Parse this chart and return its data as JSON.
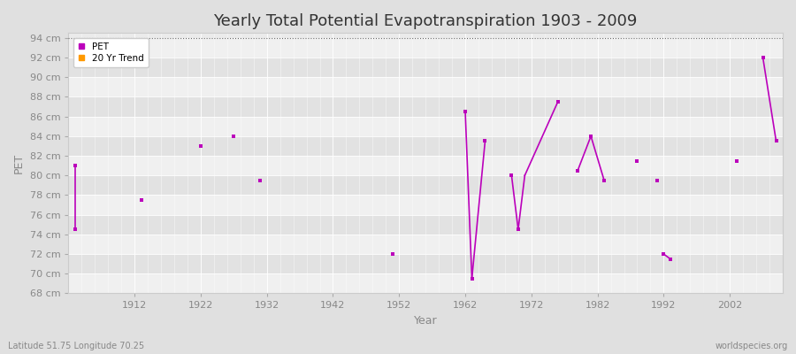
{
  "title": "Yearly Total Potential Evapotranspiration 1903 - 2009",
  "xlabel": "Year",
  "ylabel": "PET",
  "xlim": [
    1902,
    2010
  ],
  "ylim": [
    68,
    94.5
  ],
  "yticks": [
    68,
    70,
    72,
    74,
    76,
    78,
    80,
    82,
    84,
    86,
    88,
    90,
    92,
    94
  ],
  "ytick_labels": [
    "68 cm",
    "70 cm",
    "72 cm",
    "74 cm",
    "76 cm",
    "78 cm",
    "80 cm",
    "82 cm",
    "84 cm",
    "86 cm",
    "88 cm",
    "90 cm",
    "92 cm",
    "94 cm"
  ],
  "xticks": [
    1912,
    1922,
    1932,
    1942,
    1952,
    1962,
    1972,
    1982,
    1992,
    2002
  ],
  "pet_color": "#bb00bb",
  "trend_color": "#ff9900",
  "fig_bg_color": "#e0e0e0",
  "plot_bg_color": "#ebebeb",
  "band_color_light": "#f0f0f0",
  "band_color_dark": "#e2e2e2",
  "grid_color": "#ffffff",
  "title_fontsize": 13,
  "label_fontsize": 9,
  "tick_fontsize": 8,
  "footer_left": "Latitude 51.75 Longitude 70.25",
  "footer_right": "worldspecies.org",
  "pet_points": [
    [
      1903,
      81.0
    ],
    [
      1903,
      74.5
    ],
    [
      1913,
      77.5
    ],
    [
      1922,
      83.0
    ],
    [
      1927,
      84.0
    ],
    [
      1931,
      79.5
    ],
    [
      1951,
      72.0
    ],
    [
      1962,
      86.5
    ],
    [
      1963,
      69.5
    ],
    [
      1965,
      83.5
    ],
    [
      1969,
      80.0
    ],
    [
      1970,
      74.5
    ],
    [
      1976,
      87.5
    ],
    [
      1979,
      80.5
    ],
    [
      1981,
      84.0
    ],
    [
      1983,
      79.5
    ],
    [
      1988,
      81.5
    ],
    [
      1991,
      79.5
    ],
    [
      1992,
      72.0
    ],
    [
      1993,
      71.5
    ],
    [
      2003,
      81.5
    ],
    [
      2007,
      92.0
    ],
    [
      2009,
      83.5
    ]
  ],
  "pet_segments": [
    [
      [
        1903,
        81.0
      ],
      [
        1903,
        74.5
      ]
    ],
    [
      [
        1962,
        86.5
      ],
      [
        1963,
        69.5
      ]
    ],
    [
      [
        1963,
        69.5
      ],
      [
        1965,
        83.5
      ]
    ],
    [
      [
        1969,
        80.0
      ],
      [
        1970,
        74.5
      ]
    ],
    [
      [
        1970,
        74.5
      ],
      [
        1971,
        80.0
      ]
    ],
    [
      [
        1971,
        80.0
      ],
      [
        1976,
        87.5
      ]
    ],
    [
      [
        1979,
        80.5
      ],
      [
        1981,
        84.0
      ]
    ],
    [
      [
        1981,
        84.0
      ],
      [
        1983,
        79.5
      ]
    ],
    [
      [
        1992,
        72.0
      ],
      [
        1993,
        71.5
      ]
    ],
    [
      [
        2007,
        92.0
      ],
      [
        2009,
        83.5
      ]
    ]
  ]
}
